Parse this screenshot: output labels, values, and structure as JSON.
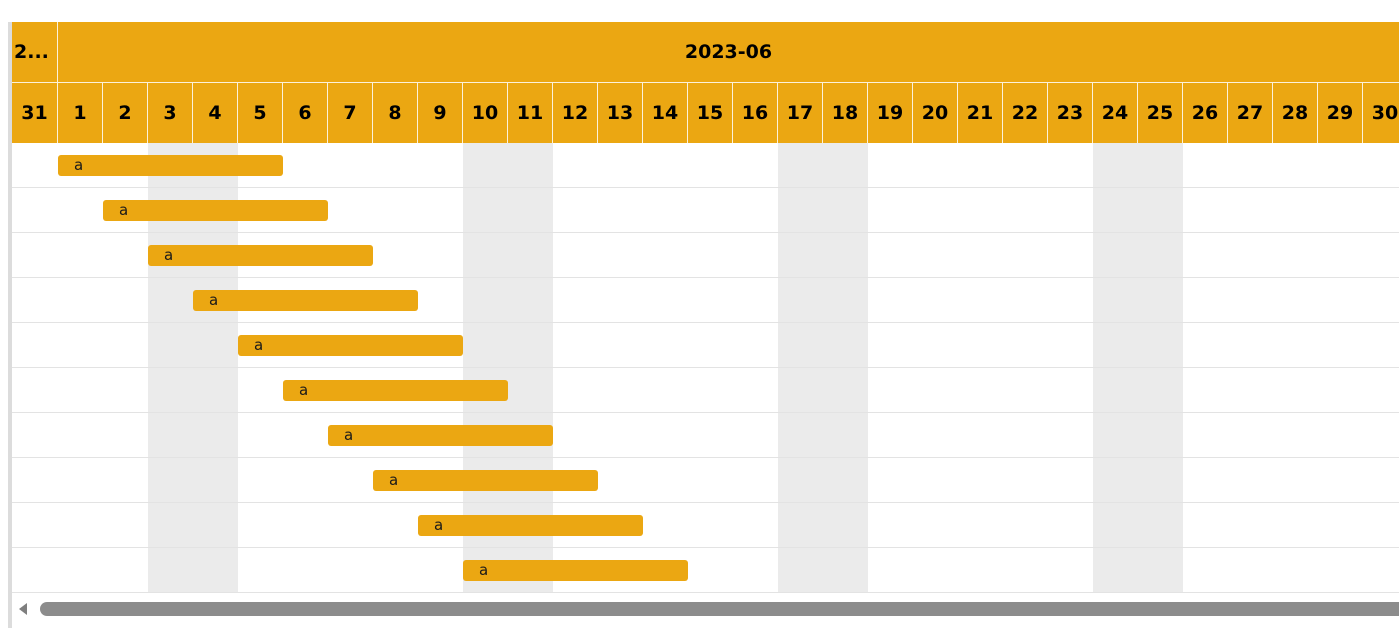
{
  "header": {
    "prev_month_label": "2...",
    "month_label": "2023-06",
    "days": [
      "31",
      "1",
      "2",
      "3",
      "4",
      "5",
      "6",
      "7",
      "8",
      "9",
      "10",
      "11",
      "12",
      "13",
      "14",
      "15",
      "16",
      "17",
      "18",
      "19",
      "20",
      "21",
      "22",
      "23",
      "24",
      "25",
      "26",
      "27",
      "28",
      "29",
      "30"
    ]
  },
  "tasks": [
    {
      "label": "a",
      "start_day": 1,
      "end_day": 5
    },
    {
      "label": "a",
      "start_day": 2,
      "end_day": 6
    },
    {
      "label": "a",
      "start_day": 3,
      "end_day": 7
    },
    {
      "label": "a",
      "start_day": 4,
      "end_day": 8
    },
    {
      "label": "a",
      "start_day": 5,
      "end_day": 9
    },
    {
      "label": "a",
      "start_day": 6,
      "end_day": 10
    },
    {
      "label": "a",
      "start_day": 7,
      "end_day": 11
    },
    {
      "label": "a",
      "start_day": 8,
      "end_day": 12
    },
    {
      "label": "a",
      "start_day": 9,
      "end_day": 13
    },
    {
      "label": "a",
      "start_day": 10,
      "end_day": 14
    }
  ],
  "weekend_days": [
    3,
    4,
    10,
    11,
    17,
    18,
    24,
    25
  ],
  "colors": {
    "accent": "#eba712",
    "weekend": "#ebebeb",
    "gridline": "#e3e3e3",
    "scrollbar": "#8c8c8c"
  },
  "icons": {
    "scroll_left": "triangle-left-icon"
  }
}
